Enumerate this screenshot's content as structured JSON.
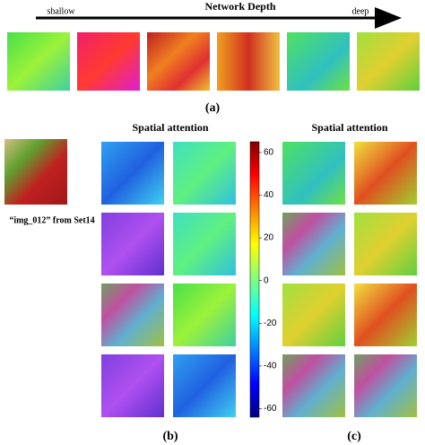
{
  "header": {
    "title": "Network Depth",
    "start": "shallow",
    "end": "deep"
  },
  "panels": {
    "a": "(a)",
    "b": "(b)",
    "c": "(c)"
  },
  "attention_titles": [
    "Spatial attention",
    "Spatial attention"
  ],
  "input_caption": "“img_012” from Set14",
  "colorbar": {
    "lim": [
      -64,
      65
    ],
    "ticks": [
      60,
      40,
      20,
      0,
      -20,
      -40,
      -60
    ]
  }
}
